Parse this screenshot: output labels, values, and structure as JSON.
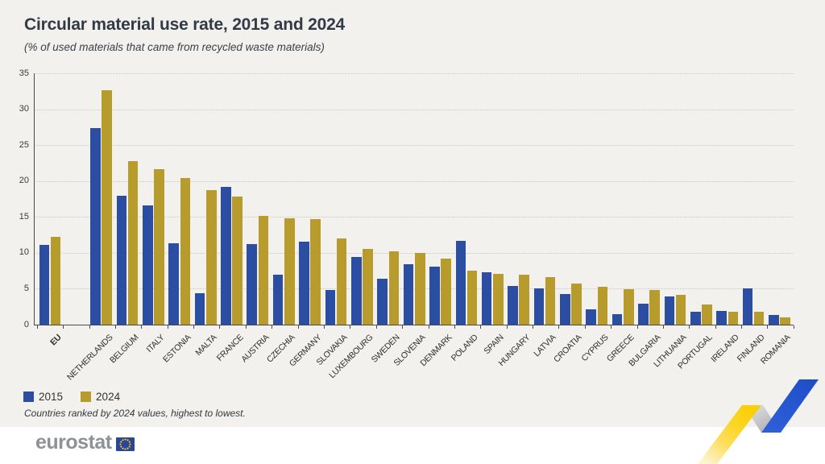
{
  "header": {
    "title": "Circular material use rate, 2015 and 2024",
    "subtitle": "(% of used materials that came from recycled waste materials)"
  },
  "chart_data": {
    "type": "bar",
    "title": "Circular material use rate, 2015 and 2024",
    "subtitle": "(% of used materials that came from recycled waste materials)",
    "categories": [
      "EU",
      "NETHERLANDS",
      "BELGIUM",
      "ITALY",
      "ESTONIA",
      "MALTA",
      "FRANCE",
      "AUSTRIA",
      "CZECHIA",
      "GERMANY",
      "SLOVAKIA",
      "LUXEMBOURG",
      "SWEDEN",
      "SLOVENIA",
      "DENMARK",
      "POLAND",
      "SPAIN",
      "HUNGARY",
      "LATVIA",
      "CROATIA",
      "CYPRUS",
      "GREECE",
      "BULGARIA",
      "LITHUANIA",
      "PORTUGAL",
      "IRELAND",
      "FINLAND",
      "ROMANIA"
    ],
    "series": [
      {
        "name": "2015",
        "color": "#2b4ea3",
        "values": [
          11.1,
          27.4,
          18.0,
          16.6,
          11.3,
          4.4,
          19.2,
          11.2,
          6.9,
          11.5,
          4.8,
          9.4,
          6.4,
          8.4,
          8.1,
          11.7,
          7.3,
          5.4,
          5.0,
          4.3,
          2.1,
          1.5,
          2.9,
          3.9,
          1.8,
          1.9,
          5.1,
          1.4
        ]
      },
      {
        "name": "2024",
        "color": "#b89b2d",
        "values": [
          12.2,
          32.7,
          22.8,
          21.7,
          20.4,
          18.7,
          17.8,
          15.2,
          14.8,
          14.7,
          12.0,
          10.5,
          10.2,
          10.0,
          9.2,
          7.5,
          7.1,
          7.0,
          6.6,
          5.7,
          5.3,
          4.9,
          4.8,
          4.1,
          2.8,
          1.8,
          1.8,
          1.0
        ]
      }
    ],
    "ylim": [
      0,
      35
    ],
    "yticks": [
      0,
      5,
      10,
      15,
      20,
      25,
      30,
      35
    ],
    "grid": "horizontal dotted",
    "legend_position": "bottom-left",
    "note": "Countries ranked by 2024 values, highest to lowest.",
    "layout_hint": "EU group separated from countries by an empty slot"
  },
  "legend": {
    "items": [
      {
        "label": "2015",
        "color": "#2b4ea3"
      },
      {
        "label": "2024",
        "color": "#b89b2d"
      }
    ]
  },
  "footnote": "Countries ranked by 2024 values, highest to lowest.",
  "footer": {
    "logo_text": "eurostat",
    "flag_icon": "eu-flag-icon"
  },
  "decor": {
    "ribbon_icon": "trend-zigzag-ribbon",
    "ribbon_colors": {
      "yellow": "#fbd11b",
      "gray": "#c4c5c9",
      "blue": "#2456cd"
    }
  }
}
